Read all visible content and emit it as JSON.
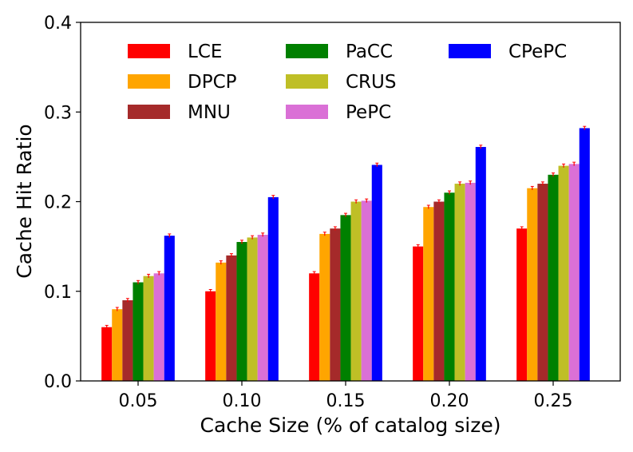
{
  "chart_data": {
    "type": "bar",
    "title": "",
    "xlabel": "Cache Size (% of catalog size)",
    "ylabel": "Cache Hit Ratio",
    "categories": [
      "0.05",
      "0.10",
      "0.15",
      "0.20",
      "0.25"
    ],
    "ylim": [
      0,
      0.4
    ],
    "yticks": [
      "0.0",
      "0.1",
      "0.2",
      "0.3",
      "0.4"
    ],
    "grid": false,
    "legend_position": "top",
    "series": [
      {
        "name": "LCE",
        "color": "#ff0000",
        "values": [
          0.06,
          0.1,
          0.12,
          0.15,
          0.17
        ]
      },
      {
        "name": "DPCP",
        "color": "#ffa500",
        "values": [
          0.08,
          0.132,
          0.164,
          0.194,
          0.215
        ]
      },
      {
        "name": "MNU",
        "color": "#a52a2a",
        "values": [
          0.09,
          0.14,
          0.17,
          0.2,
          0.22
        ]
      },
      {
        "name": "PaCC",
        "color": "#008000",
        "values": [
          0.11,
          0.155,
          0.185,
          0.21,
          0.23
        ]
      },
      {
        "name": "CRUS",
        "color": "#bfbf26",
        "values": [
          0.117,
          0.16,
          0.2,
          0.22,
          0.24
        ]
      },
      {
        "name": "PePC",
        "color": "#da70d6",
        "values": [
          0.12,
          0.163,
          0.201,
          0.221,
          0.242
        ]
      },
      {
        "name": "CPePC",
        "color": "#0000ff",
        "values": [
          0.162,
          0.205,
          0.241,
          0.261,
          0.282
        ]
      }
    ],
    "error_bar_color": "#ff0000",
    "error": 0.002
  }
}
